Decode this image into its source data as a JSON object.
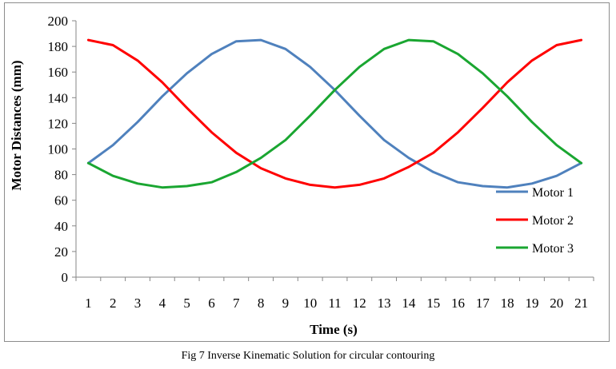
{
  "caption": "Fig 7 Inverse Kinematic Solution for circular contouring",
  "chart_data": {
    "type": "line",
    "title": "",
    "xlabel": "Time (s)",
    "ylabel": "Motor Distances (mm)",
    "x": [
      1,
      2,
      3,
      4,
      5,
      6,
      7,
      8,
      9,
      10,
      11,
      12,
      13,
      14,
      15,
      16,
      17,
      18,
      19,
      20,
      21
    ],
    "ylim": [
      0,
      200
    ],
    "yticks": [
      0,
      20,
      40,
      60,
      80,
      100,
      120,
      140,
      160,
      180,
      200
    ],
    "grid": false,
    "legend_position": "bottom-right",
    "series": [
      {
        "name": "Motor 1",
        "color": "#4f81bd",
        "values": [
          89,
          103,
          121,
          141,
          159,
          174,
          184,
          185,
          178,
          164,
          146,
          126,
          107,
          93,
          82,
          74,
          71,
          70,
          73,
          79,
          89
        ]
      },
      {
        "name": "Motor 2",
        "color": "#ff0000",
        "values": [
          185,
          181,
          169,
          152,
          132,
          113,
          97,
          85,
          77,
          72,
          70,
          72,
          77,
          86,
          97,
          113,
          132,
          152,
          169,
          181,
          185
        ]
      },
      {
        "name": "Motor 3",
        "color": "#1aa631",
        "values": [
          89,
          79,
          73,
          70,
          71,
          74,
          82,
          93,
          107,
          126,
          146,
          164,
          178,
          185,
          184,
          174,
          159,
          141,
          121,
          103,
          89
        ]
      }
    ]
  }
}
